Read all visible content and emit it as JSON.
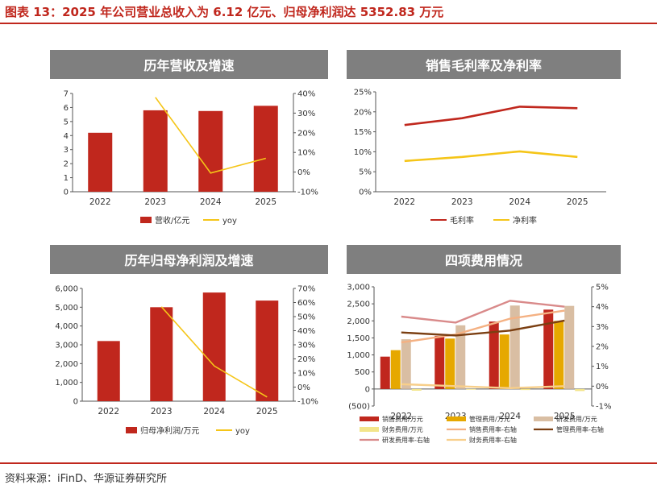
{
  "figure_title": "图表 13：2025 年公司营业总收入为 6.12 亿元、归母净利润达 5352.83 万元",
  "source": "资料来源：iFinD、华源证券研究所",
  "colors": {
    "red": "#c0271d",
    "yellow": "#f5c518",
    "tan": "#d9bea3",
    "gold": "#e6a800",
    "pink": "#d98a8a",
    "lightorange": "#f4b183",
    "brown": "#7b3f12",
    "lightyellow": "#f3e58a",
    "panel_head": "#7f7f7f"
  },
  "chart_data": [
    {
      "type": "bar",
      "title": "历年营收及增速",
      "categories": [
        "2022",
        "2023",
        "2024",
        "2025"
      ],
      "series": [
        {
          "name": "营收/亿元",
          "type": "bar",
          "axis": "left",
          "color": "#c0271d",
          "values": [
            4.2,
            5.8,
            5.75,
            6.12
          ]
        },
        {
          "name": "yoy",
          "type": "line",
          "axis": "right",
          "color": "#f5c518",
          "values": [
            null,
            38,
            -0.5,
            7
          ]
        }
      ],
      "yleft": {
        "ticks": [
          0,
          1,
          2,
          3,
          4,
          5,
          6,
          7
        ],
        "labels": [
          "0",
          "1",
          "2",
          "3",
          "4",
          "5",
          "6",
          "7"
        ]
      },
      "yright": {
        "ticks": [
          -10,
          0,
          10,
          20,
          30,
          40
        ],
        "labels": [
          "-10%",
          "0%",
          "10%",
          "20%",
          "30%",
          "40%"
        ]
      },
      "legend": "bottom"
    },
    {
      "type": "line",
      "title": "销售毛利率及净利率",
      "categories": [
        "2022",
        "2023",
        "2024",
        "2025"
      ],
      "series": [
        {
          "name": "毛利率",
          "color": "#c0271d",
          "values": [
            16.7,
            18.4,
            21.3,
            20.9
          ]
        },
        {
          "name": "净利率",
          "color": "#f5c518",
          "values": [
            7.7,
            8.7,
            10.1,
            8.7
          ]
        }
      ],
      "yleft": {
        "ticks": [
          0,
          5,
          10,
          15,
          20,
          25
        ],
        "labels": [
          "0%",
          "5%",
          "10%",
          "15%",
          "20%",
          "25%"
        ]
      },
      "legend": "bottom"
    },
    {
      "type": "bar",
      "title": "历年归母净利润及增速",
      "categories": [
        "2022",
        "2023",
        "2024",
        "2025"
      ],
      "series": [
        {
          "name": "归母净利润/万元",
          "type": "bar",
          "axis": "left",
          "color": "#c0271d",
          "values": [
            3200,
            5000,
            5780,
            5352.83
          ]
        },
        {
          "name": "yoy",
          "type": "line",
          "axis": "right",
          "color": "#f5c518",
          "values": [
            null,
            57,
            15,
            -7
          ]
        }
      ],
      "yleft": {
        "ticks": [
          0,
          1000,
          2000,
          3000,
          4000,
          5000,
          6000
        ],
        "labels": [
          "0",
          "1,000",
          "2,000",
          "3,000",
          "4,000",
          "5,000",
          "6,000"
        ]
      },
      "yright": {
        "ticks": [
          -10,
          0,
          10,
          20,
          30,
          40,
          50,
          60,
          70
        ],
        "labels": [
          "-10%",
          "0%",
          "10%",
          "20%",
          "30%",
          "40%",
          "50%",
          "60%",
          "70%"
        ]
      },
      "legend": "bottom"
    },
    {
      "type": "bar",
      "title": "四项费用情况",
      "categories": [
        "2022",
        "2023",
        "2024",
        "2025"
      ],
      "series": [
        {
          "name": "销售费用/万元",
          "type": "bar",
          "axis": "left",
          "color": "#c0271d",
          "values": [
            950,
            1560,
            1980,
            2330
          ]
        },
        {
          "name": "管理费用/万元",
          "type": "bar",
          "axis": "left",
          "color": "#e6a800",
          "values": [
            1140,
            1480,
            1600,
            2000
          ]
        },
        {
          "name": "研发费用/万元",
          "type": "bar",
          "axis": "left",
          "color": "#d9bea3",
          "values": [
            1460,
            1870,
            2450,
            2440
          ]
        },
        {
          "name": "财务费用/万元",
          "type": "bar",
          "axis": "left",
          "color": "#f3e58a",
          "values": [
            -50,
            -20,
            -30,
            -60
          ]
        },
        {
          "name": "销售费用率-右轴",
          "type": "line",
          "axis": "right",
          "color": "#f4b183",
          "values": [
            2.2,
            2.6,
            3.4,
            3.8
          ]
        },
        {
          "name": "管理费用率-右轴",
          "type": "line",
          "axis": "right",
          "color": "#7b3f12",
          "values": [
            2.7,
            2.55,
            2.8,
            3.3
          ]
        },
        {
          "name": "研发费用率-右轴",
          "type": "line",
          "axis": "right",
          "color": "#d98a8a",
          "values": [
            3.5,
            3.2,
            4.3,
            4.0
          ]
        },
        {
          "name": "财务费用率-右轴",
          "type": "line",
          "axis": "right",
          "color": "#f8cf8a",
          "values": [
            0.1,
            0.0,
            -0.1,
            0.0
          ]
        }
      ],
      "yleft": {
        "ticks": [
          -500,
          0,
          500,
          1000,
          1500,
          2000,
          2500,
          3000
        ],
        "labels": [
          "(500)",
          "0",
          "500",
          "1,000",
          "1,500",
          "2,000",
          "2,500",
          "3,000"
        ]
      },
      "yright": {
        "ticks": [
          -1,
          0,
          1,
          2,
          3,
          4,
          5
        ],
        "labels": [
          "-1%",
          "0%",
          "1%",
          "2%",
          "3%",
          "4%",
          "5%"
        ]
      },
      "legend": "bottom"
    }
  ]
}
